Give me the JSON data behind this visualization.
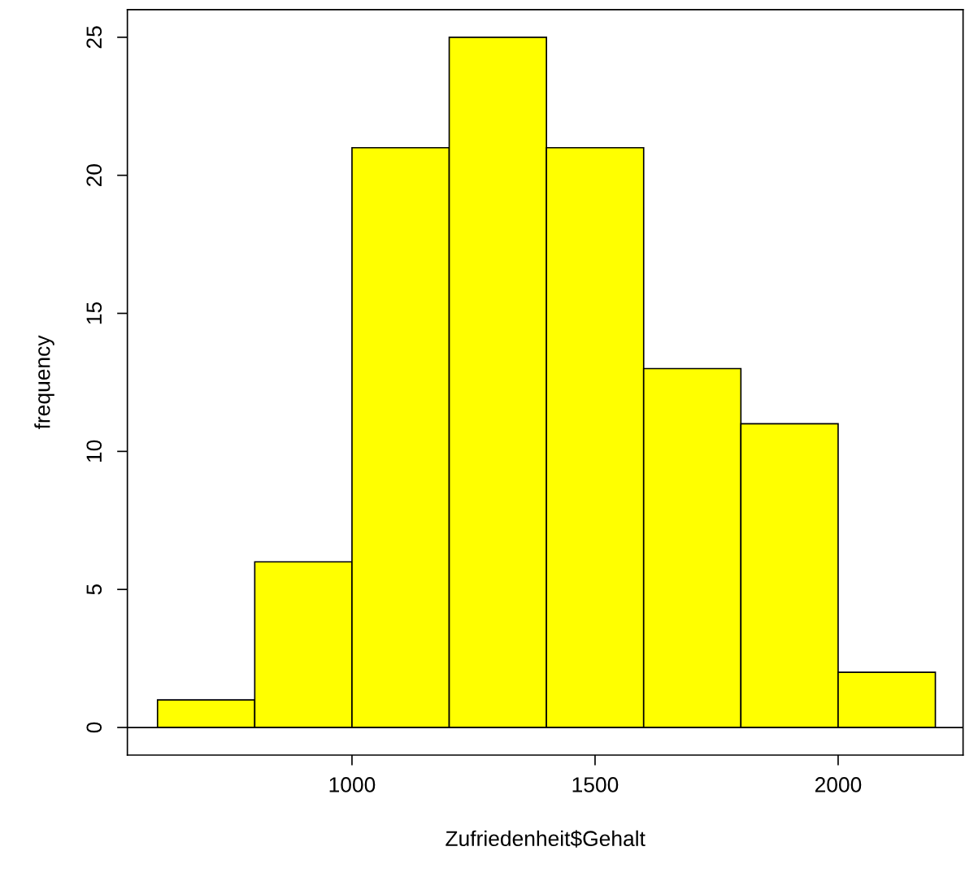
{
  "chart_data": {
    "type": "histogram",
    "xlabel": "Zufriedenheit$Gehalt",
    "ylabel": "frequency",
    "bins": [
      600,
      800,
      1000,
      1200,
      1400,
      1600,
      1800,
      2000,
      2200
    ],
    "values": [
      1,
      6,
      21,
      25,
      21,
      13,
      11,
      2
    ],
    "color": "#ffff00",
    "xlim": [
      538,
      2257
    ],
    "ylim": [
      -1,
      26
    ],
    "xticks": [
      1000,
      1500,
      2000
    ],
    "yticks": [
      0,
      5,
      10,
      15,
      20,
      25
    ],
    "ref_lines": [
      {
        "axis": "y",
        "value": 0,
        "color": "#000000"
      }
    ],
    "grid": false
  }
}
